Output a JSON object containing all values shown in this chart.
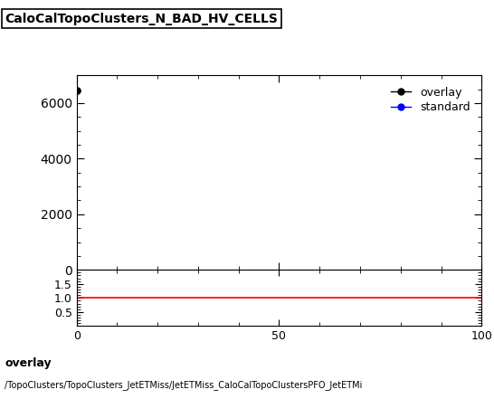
{
  "title": "CaloCalTopoClusters_N_BAD_HV_CELLS",
  "overlay_x": [
    0
  ],
  "overlay_y": [
    6450
  ],
  "standard_x": [
    0
  ],
  "standard_y": [
    6450
  ],
  "overlay_color": "#000000",
  "standard_color": "#0000ff",
  "ratio_y": 1.0,
  "xlim": [
    0,
    100
  ],
  "ylim_main": [
    0,
    7000
  ],
  "ylim_ratio": [
    0.0,
    2.0
  ],
  "yticks_main": [
    0,
    2000,
    4000,
    6000
  ],
  "yticks_ratio": [
    0.5,
    1.0,
    1.5
  ],
  "xticks": [
    0,
    50,
    100
  ],
  "ratio_line_color": "#ff0000",
  "footer_line1": "overlay",
  "footer_line2": "/TopoClusters/TopoClusters_JetETMiss/JetETMiss_CaloCalTopoClustersPFO_JetETMi",
  "background_color": "#ffffff",
  "marker_size": 5,
  "line_width": 1.2
}
